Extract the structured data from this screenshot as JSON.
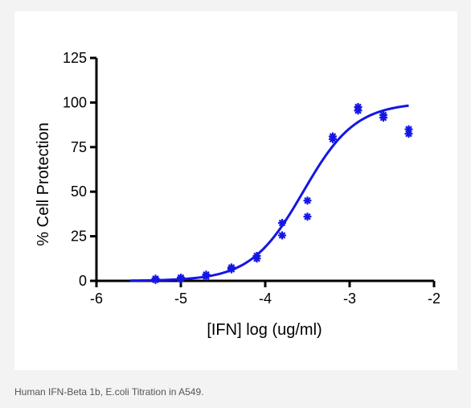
{
  "caption": "Human IFN-Beta 1b, E.coli Titration in A549.",
  "colors": {
    "axis": "#000000",
    "series": "#1515e6",
    "panel": "#ffffff",
    "background": "#f3f3f3"
  },
  "chart_data": {
    "type": "scatter",
    "title": "",
    "xlabel": "[IFN] log (ug/ml)",
    "ylabel": "% Cell Protection",
    "xlim": [
      -6,
      -2
    ],
    "ylim": [
      0,
      125
    ],
    "xticks": [
      -6,
      -5,
      -4,
      -3,
      -2
    ],
    "yticks": [
      0,
      25,
      50,
      75,
      100,
      125
    ],
    "grid": false,
    "legend": "none",
    "series": [
      {
        "points": [
          {
            "x": -5.3,
            "y": 0.5
          },
          {
            "x": -5.3,
            "y": 1.2
          },
          {
            "x": -5.0,
            "y": 1.0
          },
          {
            "x": -5.0,
            "y": 1.8
          },
          {
            "x": -4.7,
            "y": 2.5
          },
          {
            "x": -4.7,
            "y": 3.5
          },
          {
            "x": -4.4,
            "y": 6.5
          },
          {
            "x": -4.4,
            "y": 7.5
          },
          {
            "x": -4.1,
            "y": 12.5
          },
          {
            "x": -4.1,
            "y": 14.0
          },
          {
            "x": -3.8,
            "y": 25.5
          },
          {
            "x": -3.8,
            "y": 32.5
          },
          {
            "x": -3.5,
            "y": 36.0
          },
          {
            "x": -3.5,
            "y": 45.0
          },
          {
            "x": -3.2,
            "y": 79.5
          },
          {
            "x": -3.2,
            "y": 81.0
          },
          {
            "x": -2.9,
            "y": 95.5
          },
          {
            "x": -2.9,
            "y": 97.5
          },
          {
            "x": -2.6,
            "y": 91.5
          },
          {
            "x": -2.6,
            "y": 93.0
          },
          {
            "x": -2.3,
            "y": 82.5
          },
          {
            "x": -2.3,
            "y": 85.0
          }
        ],
        "fit": {
          "model": "4PL",
          "bottom": 0,
          "top": 100,
          "logEC50": -3.55,
          "hill": 1.4,
          "x_range": [
            -5.6,
            -2.3
          ]
        }
      }
    ]
  }
}
